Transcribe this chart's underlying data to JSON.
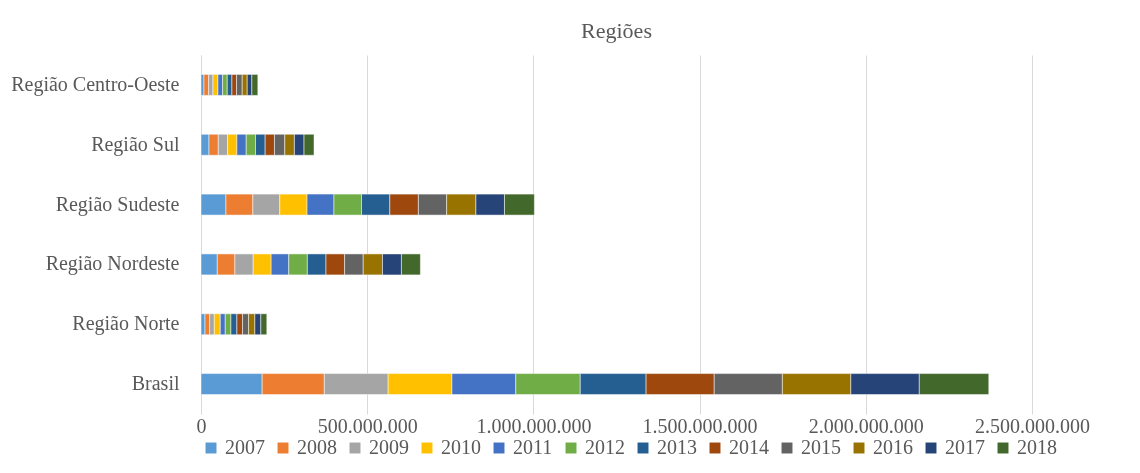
{
  "chart_data": {
    "type": "bar",
    "orientation": "horizontal",
    "stacked": true,
    "title": "Regiões",
    "categories": [
      "Região Centro-Oeste",
      "Região Sul",
      "Região Sudeste",
      "Região Nordeste",
      "Região Norte",
      "Brasil"
    ],
    "xlim": [
      0,
      2500000000
    ],
    "xticks": [
      0,
      {
        "value": 500000000,
        "label": "500.000.000"
      },
      {
        "value": 1000000000,
        "label": "1.000.000.000"
      },
      {
        "value": 1500000000,
        "label": "1.500.000.000"
      },
      {
        "value": 2000000000,
        "label": "2.000.000.000"
      },
      {
        "value": 2500000000,
        "label": "2.500.000.000"
      }
    ],
    "grid": "x",
    "legend": "bottom",
    "series": [
      {
        "name": "2007",
        "color": "#5b9bd5",
        "values": [
          9000000,
          24000000,
          75000000,
          49000000,
          12000000,
          184000000
        ]
      },
      {
        "name": "2008",
        "color": "#ed7d31",
        "values": [
          14000000,
          28000000,
          81000000,
          53000000,
          14000000,
          187000000
        ]
      },
      {
        "name": "2009",
        "color": "#a5a5a5",
        "values": [
          13000000,
          28000000,
          81000000,
          55000000,
          14000000,
          192000000
        ]
      },
      {
        "name": "2010",
        "color": "#ffc000",
        "values": [
          15000000,
          28000000,
          82000000,
          54000000,
          18000000,
          192000000
        ]
      },
      {
        "name": "2011",
        "color": "#4472c4",
        "values": [
          14000000,
          28000000,
          81000000,
          53000000,
          15000000,
          192000000
        ]
      },
      {
        "name": "2012",
        "color": "#70ad47",
        "values": [
          14000000,
          28000000,
          83000000,
          56000000,
          17000000,
          194000000
        ]
      },
      {
        "name": "2013",
        "color": "#255e91",
        "values": [
          14000000,
          29000000,
          85000000,
          56000000,
          18000000,
          198000000
        ]
      },
      {
        "name": "2014",
        "color": "#9e480e",
        "values": [
          14000000,
          28000000,
          86000000,
          56000000,
          17000000,
          205000000
        ]
      },
      {
        "name": "2015",
        "color": "#636363",
        "values": [
          17000000,
          31000000,
          85000000,
          56000000,
          18000000,
          205000000
        ]
      },
      {
        "name": "2016",
        "color": "#997300",
        "values": [
          15000000,
          29000000,
          88000000,
          58000000,
          19000000,
          206000000
        ]
      },
      {
        "name": "2017",
        "color": "#264478",
        "values": [
          14000000,
          29000000,
          86000000,
          57000000,
          18000000,
          206000000
        ]
      },
      {
        "name": "2018",
        "color": "#43682b",
        "values": [
          18000000,
          30000000,
          90000000,
          57000000,
          18000000,
          209000000
        ]
      }
    ]
  }
}
